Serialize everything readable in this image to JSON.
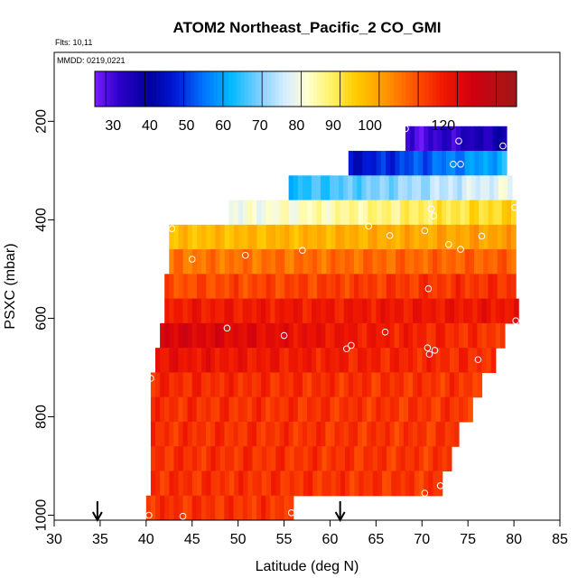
{
  "chart_data": {
    "type": "heatmap",
    "title": "ATOM2 Northeast_Pacific_2 CO_GMI",
    "flights_note": "Flts: 10,11",
    "date_note": "MMDD: 0219,0221",
    "xlabel": "Latitude (deg N)",
    "ylabel": "PSXC (mbar)",
    "xlim": [
      30,
      85
    ],
    "ylim": [
      1010,
      60
    ],
    "x_ticks": [
      30,
      35,
      40,
      45,
      50,
      55,
      60,
      65,
      70,
      75,
      80,
      85
    ],
    "y_ticks": [
      200,
      400,
      600,
      800,
      1000
    ],
    "colorbar": {
      "range": [
        25,
        140
      ],
      "ticks": [
        30,
        40,
        50,
        60,
        70,
        80,
        90,
        100,
        120
      ],
      "color_stops": [
        {
          "v": 25,
          "c": "#7a1cff"
        },
        {
          "v": 32,
          "c": "#2a00c8"
        },
        {
          "v": 40,
          "c": "#00009a"
        },
        {
          "v": 47,
          "c": "#0019d8"
        },
        {
          "v": 55,
          "c": "#0078ff"
        },
        {
          "v": 62,
          "c": "#00b8ff"
        },
        {
          "v": 70,
          "c": "#7fd0ff"
        },
        {
          "v": 77,
          "c": "#d8eeff"
        },
        {
          "v": 83,
          "c": "#ffffd0"
        },
        {
          "v": 90,
          "c": "#fff060"
        },
        {
          "v": 96,
          "c": "#ffcc00"
        },
        {
          "v": 104,
          "c": "#ff9900"
        },
        {
          "v": 112,
          "c": "#ff5500"
        },
        {
          "v": 120,
          "c": "#f01800"
        },
        {
          "v": 128,
          "c": "#d00010"
        },
        {
          "v": 140,
          "c": "#a01818"
        }
      ]
    },
    "layers": [
      {
        "p_top": 210,
        "p_bot": 260,
        "lat_start": 68.2,
        "lat_end": 79.2,
        "co_start": 28,
        "co_end": 37
      },
      {
        "p_top": 260,
        "p_bot": 310,
        "lat_start": 62.0,
        "lat_end": 79.2,
        "co_start": 44,
        "co_end": 62
      },
      {
        "p_top": 310,
        "p_bot": 360,
        "lat_start": 55.5,
        "lat_end": 79.8,
        "co_start": 63,
        "co_end": 80
      },
      {
        "p_top": 360,
        "p_bot": 410,
        "lat_start": 49.0,
        "lat_end": 80.2,
        "co_start": 80,
        "co_end": 95
      },
      {
        "p_top": 410,
        "p_bot": 460,
        "lat_start": 42.5,
        "lat_end": 80.2,
        "co_start": 98,
        "co_end": 103
      },
      {
        "p_top": 460,
        "p_bot": 510,
        "lat_start": 42.5,
        "lat_end": 80.2,
        "co_start": 108,
        "co_end": 111
      },
      {
        "p_top": 510,
        "p_bot": 560,
        "lat_start": 42.0,
        "lat_end": 80.2,
        "co_start": 113,
        "co_end": 117
      },
      {
        "p_top": 560,
        "p_bot": 610,
        "lat_start": 42.0,
        "lat_end": 80.5,
        "co_start": 120,
        "co_end": 121
      },
      {
        "p_top": 610,
        "p_bot": 660,
        "lat_start": 41.5,
        "lat_end": 79.0,
        "co_start": 127,
        "co_end": 116
      },
      {
        "p_top": 660,
        "p_bot": 710,
        "lat_start": 41.0,
        "lat_end": 78.0,
        "co_start": 122,
        "co_end": 117
      },
      {
        "p_top": 710,
        "p_bot": 760,
        "lat_start": 40.5,
        "lat_end": 76.5,
        "co_start": 118,
        "co_end": 116
      },
      {
        "p_top": 760,
        "p_bot": 810,
        "lat_start": 40.5,
        "lat_end": 75.5,
        "co_start": 117,
        "co_end": 116
      },
      {
        "p_top": 810,
        "p_bot": 860,
        "lat_start": 40.5,
        "lat_end": 74.0,
        "co_start": 117,
        "co_end": 116
      },
      {
        "p_top": 860,
        "p_bot": 910,
        "lat_start": 40.5,
        "lat_end": 73.2,
        "co_start": 117,
        "co_end": 116
      },
      {
        "p_top": 910,
        "p_bot": 960,
        "lat_start": 40.5,
        "lat_end": 72.2,
        "co_start": 117,
        "co_end": 116
      },
      {
        "p_top": 960,
        "p_bot": 1010,
        "lat_start": 40.0,
        "lat_end": 56.0,
        "co_start": 117,
        "co_end": 116
      }
    ],
    "observation_points": [
      {
        "lat": 68.2,
        "p": 215
      },
      {
        "lat": 74.0,
        "p": 240
      },
      {
        "lat": 78.8,
        "p": 250
      },
      {
        "lat": 73.4,
        "p": 287
      },
      {
        "lat": 74.2,
        "p": 287
      },
      {
        "lat": 80.1,
        "p": 375
      },
      {
        "lat": 71.0,
        "p": 378
      },
      {
        "lat": 71.3,
        "p": 392
      },
      {
        "lat": 64.2,
        "p": 413
      },
      {
        "lat": 70.3,
        "p": 422
      },
      {
        "lat": 42.8,
        "p": 418
      },
      {
        "lat": 66.5,
        "p": 432
      },
      {
        "lat": 76.5,
        "p": 433
      },
      {
        "lat": 72.9,
        "p": 450
      },
      {
        "lat": 74.2,
        "p": 460
      },
      {
        "lat": 57.0,
        "p": 462
      },
      {
        "lat": 50.8,
        "p": 472
      },
      {
        "lat": 45.0,
        "p": 480
      },
      {
        "lat": 70.7,
        "p": 540
      },
      {
        "lat": 80.2,
        "p": 605
      },
      {
        "lat": 48.8,
        "p": 620
      },
      {
        "lat": 55.0,
        "p": 635
      },
      {
        "lat": 66.0,
        "p": 628
      },
      {
        "lat": 62.3,
        "p": 655
      },
      {
        "lat": 61.8,
        "p": 662
      },
      {
        "lat": 70.6,
        "p": 660
      },
      {
        "lat": 71.4,
        "p": 665
      },
      {
        "lat": 70.8,
        "p": 673
      },
      {
        "lat": 76.1,
        "p": 684
      },
      {
        "lat": 40.5,
        "p": 722
      },
      {
        "lat": 72.0,
        "p": 940
      },
      {
        "lat": 70.3,
        "p": 955
      },
      {
        "lat": 55.8,
        "p": 995
      },
      {
        "lat": 40.3,
        "p": 1000
      },
      {
        "lat": 44.0,
        "p": 1002
      }
    ],
    "arrows_lat": [
      34.7,
      61.1
    ]
  }
}
